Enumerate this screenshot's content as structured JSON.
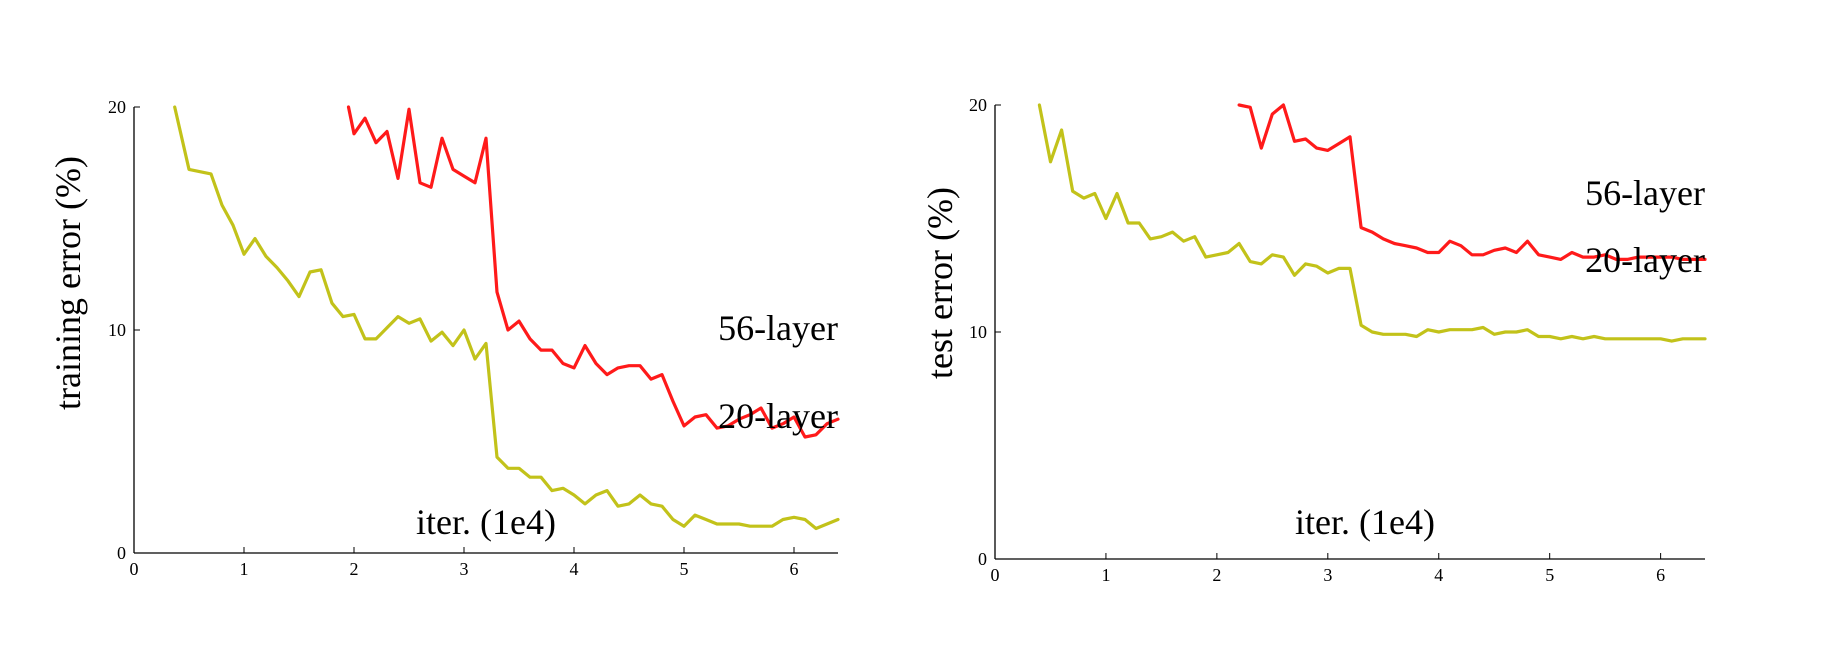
{
  "figure": {
    "background": "#ffffff",
    "line_colors": {
      "56-layer": "#ff1a1a",
      "20-layer": "#c2c21a"
    }
  },
  "chart_data": [
    {
      "type": "line",
      "xlabel": "iter. (1e4)",
      "ylabel": "training error (%)",
      "xlim": [
        0,
        6.4
      ],
      "ylim": [
        0,
        20
      ],
      "x_ticks": [
        0,
        1,
        2,
        3,
        4,
        5,
        6
      ],
      "y_ticks": [
        0,
        10,
        20
      ],
      "grid": false,
      "series": [
        {
          "name": "56-layer",
          "color": "#ff1a1a",
          "x": [
            1.95,
            2.0,
            2.1,
            2.2,
            2.3,
            2.4,
            2.5,
            2.6,
            2.7,
            2.8,
            2.9,
            3.0,
            3.1,
            3.2,
            3.3,
            3.4,
            3.5,
            3.6,
            3.7,
            3.8,
            3.9,
            4.0,
            4.1,
            4.2,
            4.3,
            4.4,
            4.5,
            4.6,
            4.7,
            4.8,
            4.9,
            5.0,
            5.1,
            5.2,
            5.3,
            5.4,
            5.5,
            5.6,
            5.7,
            5.8,
            5.9,
            6.0,
            6.1,
            6.2,
            6.3,
            6.4
          ],
          "y": [
            20.0,
            18.8,
            19.5,
            18.4,
            18.9,
            16.8,
            19.9,
            16.6,
            16.4,
            18.6,
            17.2,
            16.9,
            16.6,
            18.6,
            11.7,
            10.0,
            10.4,
            9.6,
            9.1,
            9.1,
            8.5,
            8.3,
            9.3,
            8.5,
            8.0,
            8.3,
            8.4,
            8.4,
            7.8,
            8.0,
            6.8,
            5.7,
            6.1,
            6.2,
            5.6,
            5.7,
            6.0,
            6.2,
            6.5,
            5.6,
            5.8,
            6.1,
            5.2,
            5.3,
            5.8,
            6.0
          ]
        },
        {
          "name": "20-layer",
          "color": "#c2c21a",
          "x": [
            0.37,
            0.5,
            0.6,
            0.7,
            0.8,
            0.9,
            1.0,
            1.1,
            1.2,
            1.3,
            1.4,
            1.5,
            1.6,
            1.7,
            1.8,
            1.9,
            2.0,
            2.1,
            2.2,
            2.3,
            2.4,
            2.5,
            2.6,
            2.7,
            2.8,
            2.9,
            3.0,
            3.1,
            3.2,
            3.3,
            3.4,
            3.5,
            3.6,
            3.7,
            3.8,
            3.9,
            4.0,
            4.1,
            4.2,
            4.3,
            4.4,
            4.5,
            4.6,
            4.7,
            4.8,
            4.9,
            5.0,
            5.1,
            5.2,
            5.3,
            5.4,
            5.5,
            5.6,
            5.7,
            5.8,
            5.9,
            6.0,
            6.1,
            6.2,
            6.3,
            6.4
          ],
          "y": [
            20.0,
            17.2,
            17.1,
            17.0,
            15.6,
            14.7,
            13.4,
            14.1,
            13.3,
            12.8,
            12.2,
            11.5,
            12.6,
            12.7,
            11.2,
            10.6,
            10.7,
            9.6,
            9.6,
            10.1,
            10.6,
            10.3,
            10.5,
            9.5,
            9.9,
            9.3,
            10.0,
            8.7,
            9.4,
            4.3,
            3.8,
            3.8,
            3.4,
            3.4,
            2.8,
            2.9,
            2.6,
            2.2,
            2.6,
            2.8,
            2.1,
            2.2,
            2.6,
            2.2,
            2.1,
            1.5,
            1.2,
            1.7,
            1.5,
            1.3,
            1.3,
            1.3,
            1.2,
            1.2,
            1.2,
            1.5,
            1.6,
            1.5,
            1.1,
            1.3,
            1.5
          ]
        }
      ],
      "annotations": [
        {
          "text": "56-layer",
          "series": "56-layer"
        },
        {
          "text": "20-layer",
          "series": "20-layer"
        }
      ]
    },
    {
      "type": "line",
      "xlabel": "iter. (1e4)",
      "ylabel": "test error (%)",
      "xlim": [
        0,
        6.4
      ],
      "ylim": [
        0,
        20
      ],
      "x_ticks": [
        0,
        1,
        2,
        3,
        4,
        5,
        6
      ],
      "y_ticks": [
        0,
        10,
        20
      ],
      "grid": false,
      "series": [
        {
          "name": "56-layer",
          "color": "#ff1a1a",
          "x": [
            2.2,
            2.3,
            2.4,
            2.5,
            2.6,
            2.7,
            2.8,
            2.9,
            3.0,
            3.1,
            3.2,
            3.3,
            3.4,
            3.5,
            3.6,
            3.7,
            3.8,
            3.9,
            4.0,
            4.1,
            4.2,
            4.3,
            4.4,
            4.5,
            4.6,
            4.7,
            4.8,
            4.9,
            5.0,
            5.1,
            5.2,
            5.3,
            5.4,
            5.5,
            5.6,
            5.7,
            5.8,
            5.9,
            6.0,
            6.1,
            6.2,
            6.3,
            6.4
          ],
          "y": [
            20.0,
            19.9,
            18.1,
            19.6,
            20.0,
            18.4,
            18.5,
            18.1,
            18.0,
            18.3,
            18.6,
            14.6,
            14.4,
            14.1,
            13.9,
            13.8,
            13.7,
            13.5,
            13.5,
            14.0,
            13.8,
            13.4,
            13.4,
            13.6,
            13.7,
            13.5,
            14.0,
            13.4,
            13.3,
            13.2,
            13.5,
            13.3,
            13.3,
            13.4,
            13.2,
            13.2,
            13.3,
            13.3,
            13.3,
            13.3,
            13.2,
            13.2,
            13.2
          ]
        },
        {
          "name": "20-layer",
          "color": "#c2c21a",
          "x": [
            0.4,
            0.5,
            0.6,
            0.7,
            0.8,
            0.9,
            1.0,
            1.1,
            1.2,
            1.3,
            1.4,
            1.5,
            1.6,
            1.7,
            1.8,
            1.9,
            2.0,
            2.1,
            2.2,
            2.3,
            2.4,
            2.5,
            2.6,
            2.7,
            2.8,
            2.9,
            3.0,
            3.1,
            3.2,
            3.3,
            3.4,
            3.5,
            3.6,
            3.7,
            3.8,
            3.9,
            4.0,
            4.1,
            4.2,
            4.3,
            4.4,
            4.5,
            4.6,
            4.7,
            4.8,
            4.9,
            5.0,
            5.1,
            5.2,
            5.3,
            5.4,
            5.5,
            5.6,
            5.7,
            5.8,
            5.9,
            6.0,
            6.1,
            6.2,
            6.3,
            6.4
          ],
          "y": [
            20.0,
            17.5,
            18.9,
            16.2,
            15.9,
            16.1,
            15.0,
            16.1,
            14.8,
            14.8,
            14.1,
            14.2,
            14.4,
            14.0,
            14.2,
            13.3,
            13.4,
            13.5,
            13.9,
            13.1,
            13.0,
            13.4,
            13.3,
            12.5,
            13.0,
            12.9,
            12.6,
            12.8,
            12.8,
            10.3,
            10.0,
            9.9,
            9.9,
            9.9,
            9.8,
            10.1,
            10.0,
            10.1,
            10.1,
            10.1,
            10.2,
            9.9,
            10.0,
            10.0,
            10.1,
            9.8,
            9.8,
            9.7,
            9.8,
            9.7,
            9.8,
            9.7,
            9.7,
            9.7,
            9.7,
            9.7,
            9.7,
            9.6,
            9.7,
            9.7,
            9.7
          ]
        }
      ],
      "annotations": [
        {
          "text": "56-layer",
          "series": "56-layer"
        },
        {
          "text": "20-layer",
          "series": "20-layer"
        }
      ]
    }
  ]
}
